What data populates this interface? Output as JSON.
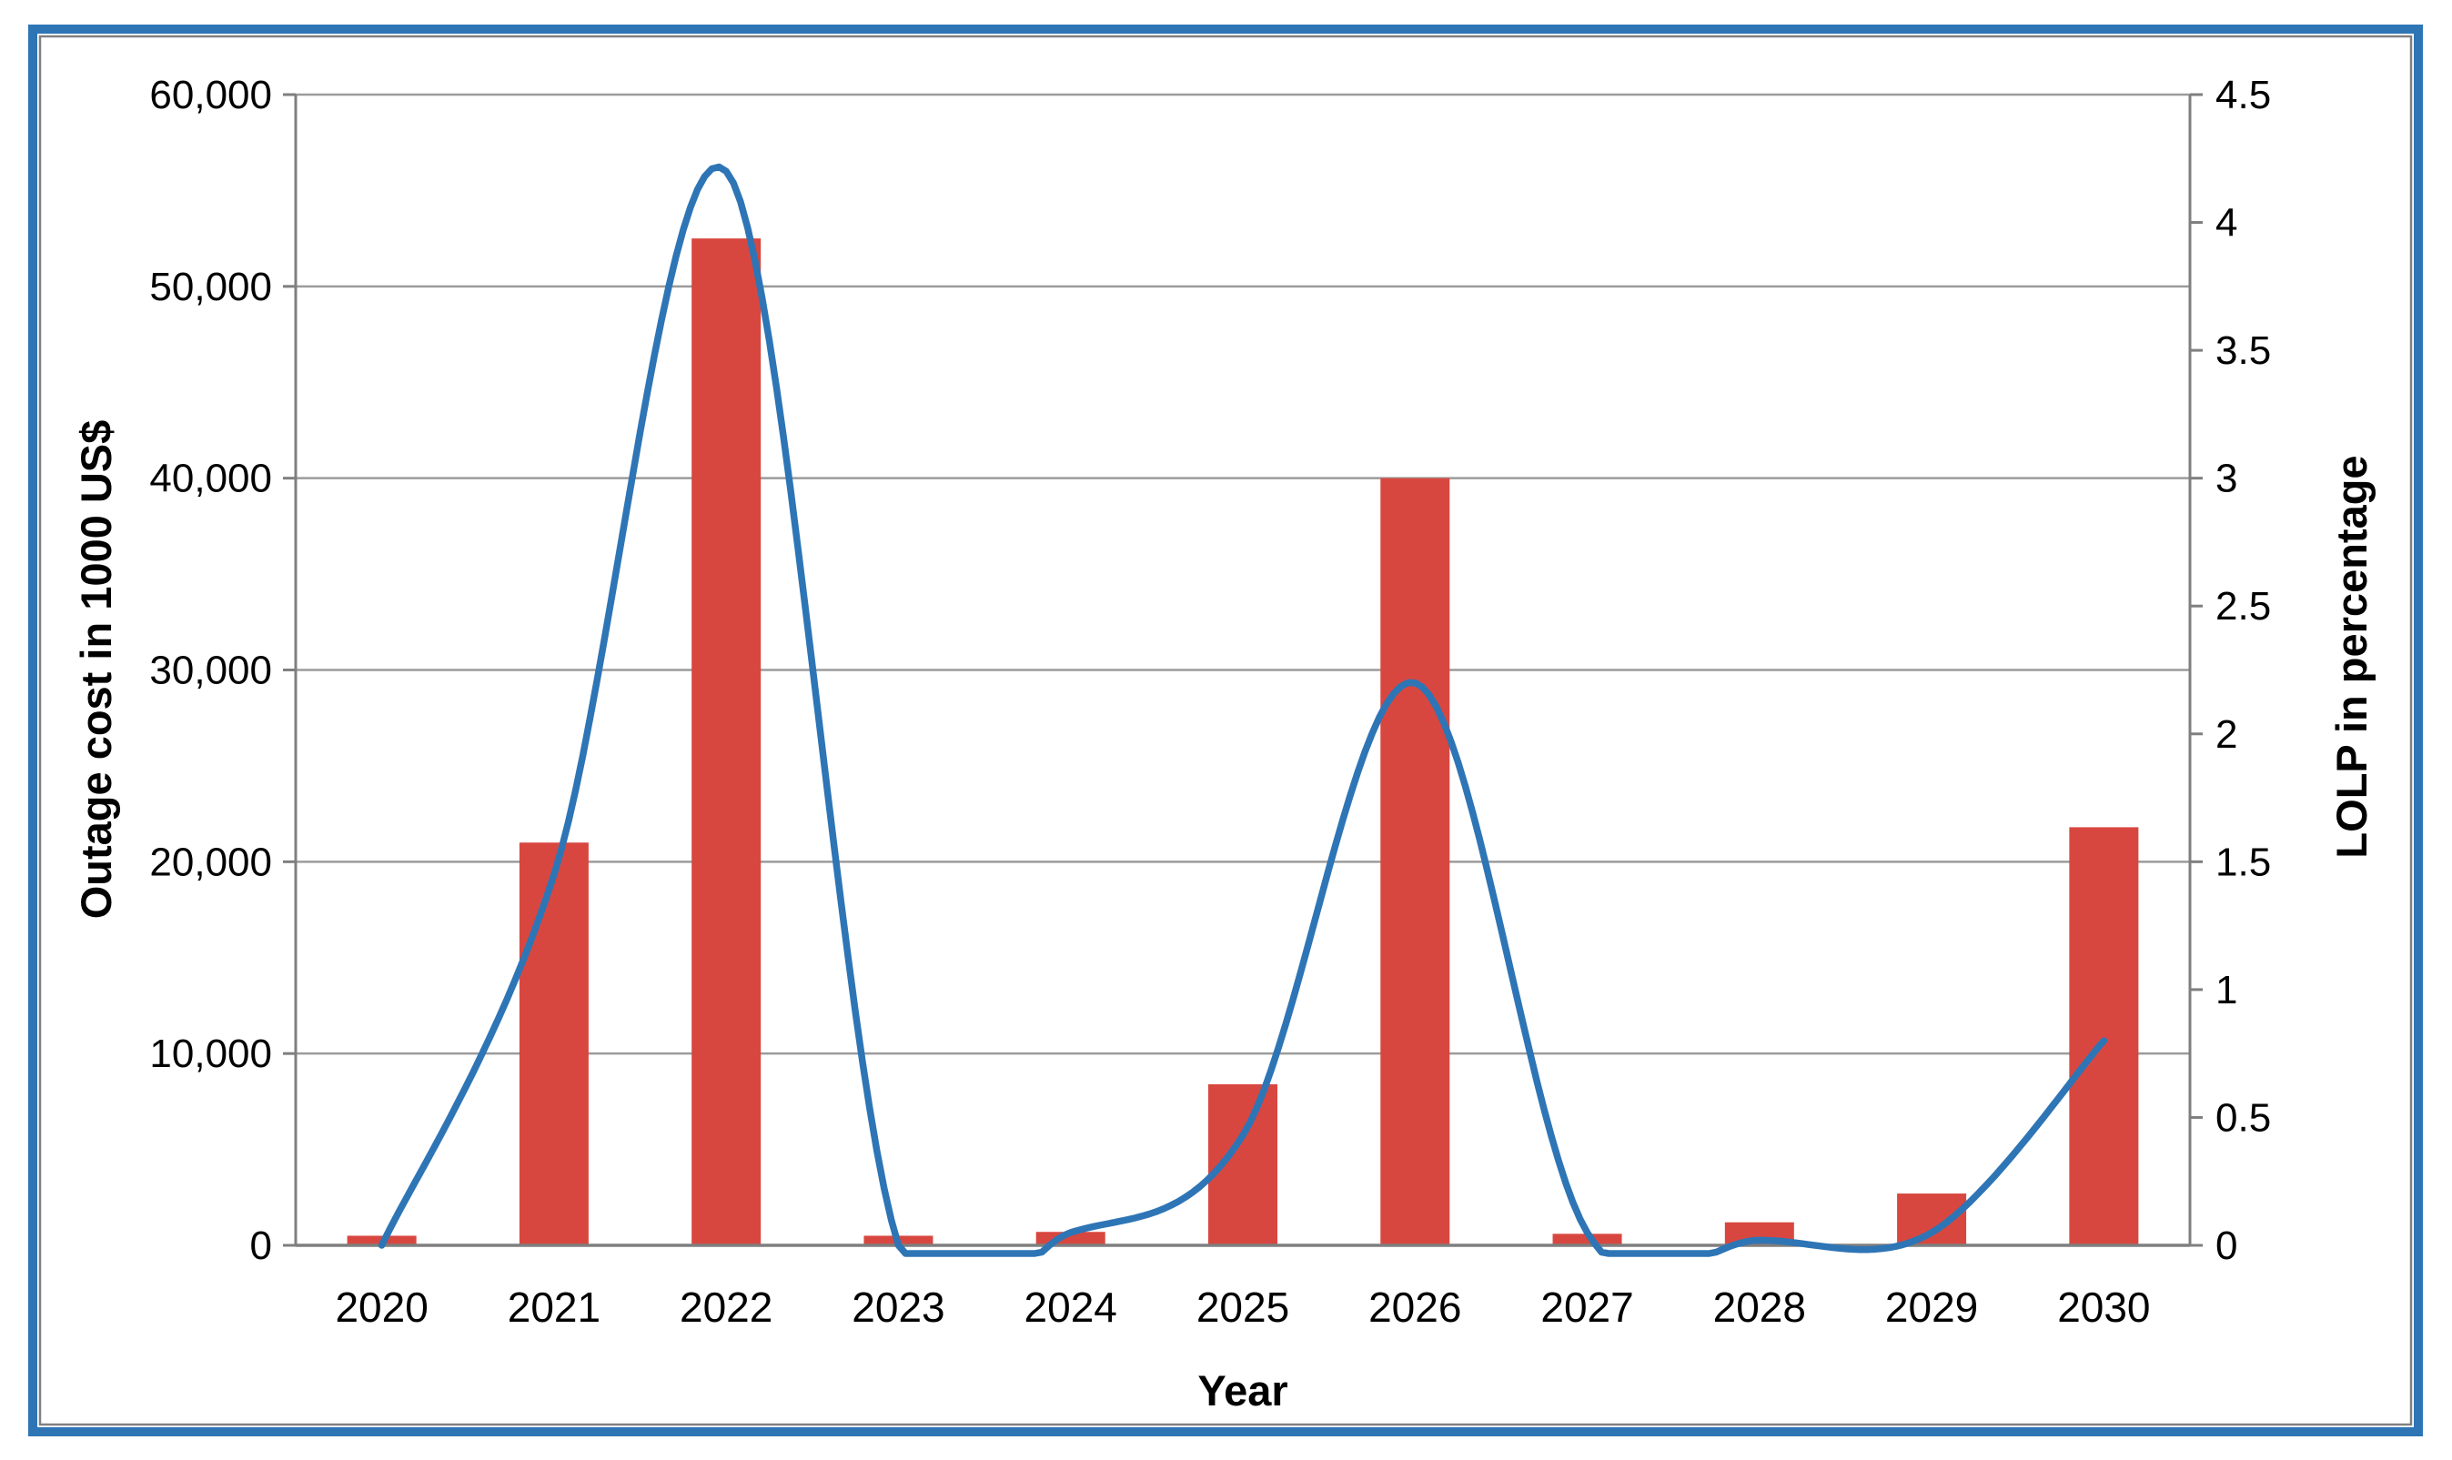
{
  "figure": {
    "background": "#ffffff",
    "frame_color": "#2E75B6",
    "inner_border_color": "#808080"
  },
  "chart_data": {
    "type": "combo",
    "categories": [
      "2020",
      "2021",
      "2022",
      "2023",
      "2024",
      "2025",
      "2026",
      "2027",
      "2028",
      "2029",
      "2030"
    ],
    "series": [
      {
        "name": "Outage cost",
        "type": "bar",
        "axis": "left",
        "color": "#D8473F",
        "values": [
          500,
          21000,
          52500,
          500,
          700,
          8400,
          40000,
          600,
          1200,
          2700,
          21800
        ]
      },
      {
        "name": "LOLP",
        "type": "line",
        "axis": "right",
        "color": "#2E75B6",
        "values": [
          0,
          1.45,
          4.2,
          0,
          0.05,
          0.43,
          2.2,
          0.05,
          0.02,
          0.05,
          0.8
        ]
      }
    ],
    "xlabel": "Year",
    "ylabel_left": "Outage cost in 1000 US$",
    "ylabel_right": "LOLP in percentage",
    "y_left": {
      "min": 0,
      "max": 60000,
      "step": 10000,
      "tick_labels": [
        "0",
        "10,000",
        "20,000",
        "30,000",
        "40,000",
        "50,000",
        "60,000"
      ]
    },
    "y_right": {
      "min": 0,
      "max": 4.5,
      "step": 0.5,
      "tick_labels": [
        "0",
        "0.5",
        "1",
        "1.5",
        "2",
        "2.5",
        "3",
        "3.5",
        "4",
        "4.5"
      ]
    },
    "grid": true,
    "legend": "none",
    "gridline_color": "#9B9B9B",
    "axis_color": "#7F7F7F",
    "text_color": "#000000"
  }
}
